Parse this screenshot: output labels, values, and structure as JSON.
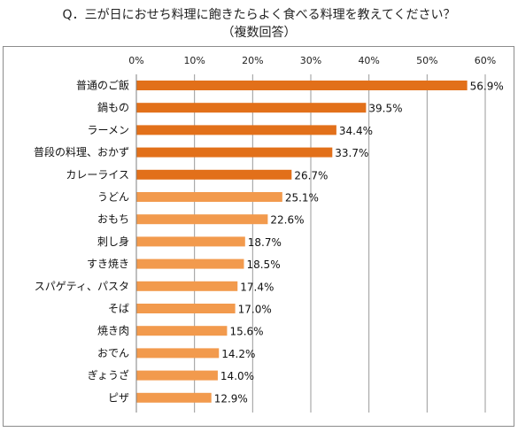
{
  "chart_data": {
    "type": "bar",
    "orientation": "horizontal",
    "title": "Q．三が日におせち料理に飽きたらよく食べる料理を教えてください？",
    "subtitle": "（複数回答）",
    "xlim": [
      0,
      60
    ],
    "ticks": [
      0,
      10,
      20,
      30,
      40,
      50,
      60
    ],
    "tick_suffix": "%",
    "value_suffix": "%",
    "grid": true,
    "categories": [
      "普通のご飯",
      "鍋もの",
      "ラーメン",
      "普段の料理、おかず",
      "カレーライス",
      "うどん",
      "おもち",
      "刺し身",
      "すき焼き",
      "スパゲティ、パスタ",
      "そば",
      "焼き肉",
      "おでん",
      "ぎょうざ",
      "ピザ"
    ],
    "values": [
      56.9,
      39.5,
      34.4,
      33.7,
      26.7,
      25.1,
      22.6,
      18.7,
      18.5,
      17.4,
      17.0,
      15.6,
      14.2,
      14.0,
      12.9
    ],
    "value_labels": [
      "56.9%",
      "39.5%",
      "34.4%",
      "33.7%",
      "26.7%",
      "25.1%",
      "22.6%",
      "18.7%",
      "18.5%",
      "17.4%",
      "17.0%",
      "15.6%",
      "14.2%",
      "14.0%",
      "12.9%"
    ],
    "colors": {
      "dark": "#e2701a",
      "light": "#f29a4d",
      "grid": "#9a9a9a",
      "axis": "#7f7f7f"
    },
    "dark_count": 5
  }
}
